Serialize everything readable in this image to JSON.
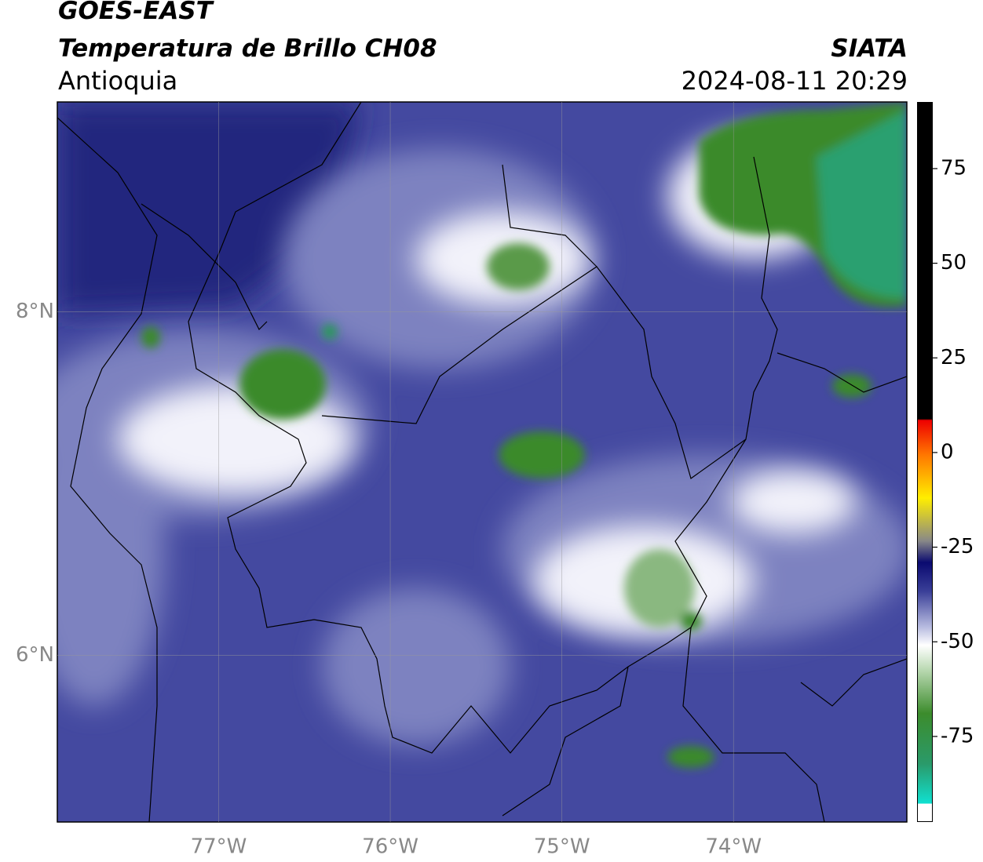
{
  "header": {
    "satellite": "GOES-EAST",
    "product": "Temperatura de Brillo CH08",
    "region": "Antioquia",
    "source": "SIATA",
    "datetime": "2024-08-11 20:29"
  },
  "map": {
    "lonlim": [
      -77.94,
      -72.99
    ],
    "latlim": [
      5.03,
      9.22
    ],
    "lonticks": [
      {
        "value": -77,
        "label": "77°W"
      },
      {
        "value": -76,
        "label": "76°W"
      },
      {
        "value": -75,
        "label": "75°W"
      },
      {
        "value": -74,
        "label": "74°W"
      }
    ],
    "latticks": [
      {
        "value": 8,
        "label": "8°N"
      },
      {
        "value": 6,
        "label": "6°N"
      }
    ],
    "grid": true
  },
  "colorbar": {
    "lim": [
      -97.6,
      92.6
    ],
    "ticks": [
      75,
      50,
      25,
      0,
      -25,
      -50,
      -75
    ]
  }
}
